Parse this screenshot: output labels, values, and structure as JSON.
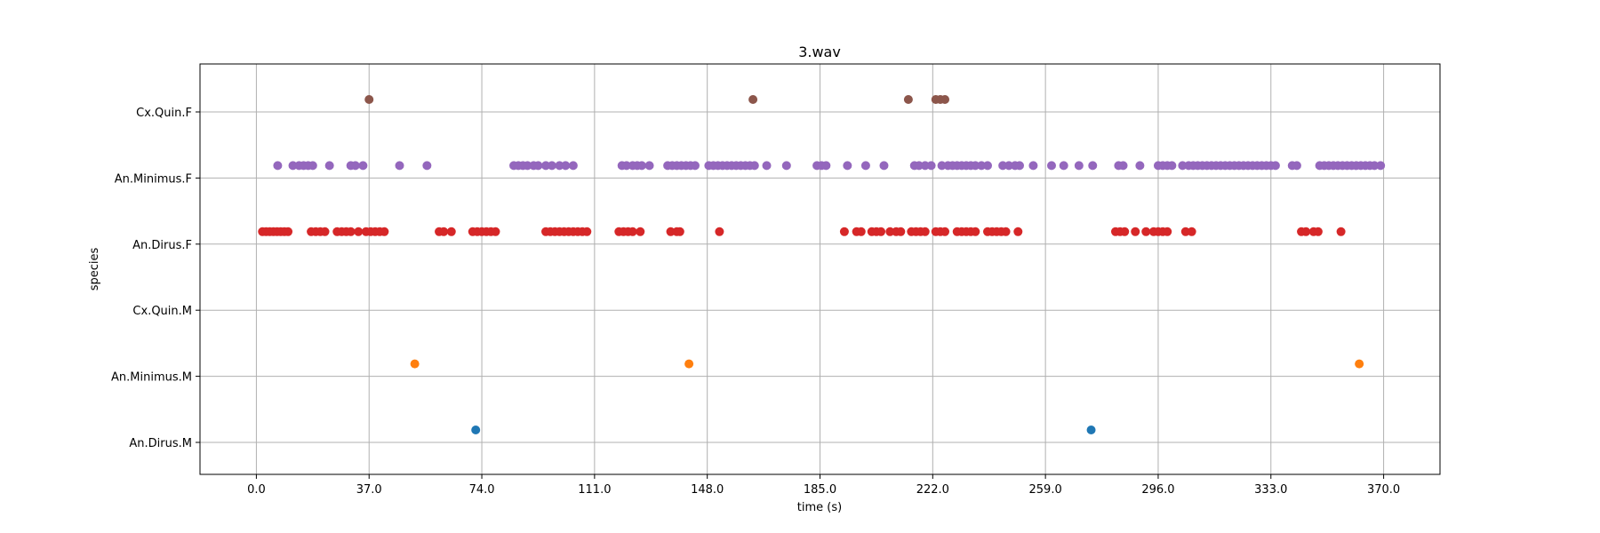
{
  "chart_data": {
    "type": "scatter",
    "title": "3.wav",
    "xlabel": "time (s)",
    "ylabel": "species",
    "xlim": [
      -18.5,
      388.5
    ],
    "x_ticks": [
      0.0,
      37.0,
      74.0,
      111.0,
      148.0,
      185.0,
      222.0,
      259.0,
      296.0,
      333.0,
      370.0
    ],
    "x_tick_labels": [
      "0.0",
      "37.0",
      "74.0",
      "111.0",
      "148.0",
      "185.0",
      "222.0",
      "259.0",
      "296.0",
      "333.0",
      "370.0"
    ],
    "categories": [
      "An.Dirus.M",
      "An.Minimus.M",
      "Cx.Quin.M",
      "An.Dirus.F",
      "An.Minimus.F",
      "Cx.Quin.F"
    ],
    "grid": true,
    "series": [
      {
        "category": "An.Dirus.M",
        "color": "#1f77b4",
        "x": [
          72.0,
          274.0
        ]
      },
      {
        "category": "An.Minimus.M",
        "color": "#ff7f0e",
        "x": [
          52.0,
          142.0,
          362.0
        ]
      },
      {
        "category": "Cx.Quin.M",
        "color": "#2ca02c",
        "x": []
      },
      {
        "category": "An.Dirus.F",
        "color": "#d62728",
        "x": [
          2.0,
          3.2,
          4.4,
          5.6,
          6.8,
          8.0,
          9.2,
          10.4,
          18.0,
          19.5,
          21.0,
          22.5,
          26.5,
          28.0,
          29.5,
          31.0,
          33.5,
          36.0,
          37.5,
          39.0,
          40.5,
          42.0,
          60.0,
          61.5,
          64.0,
          71.0,
          72.5,
          74.0,
          75.5,
          77.0,
          78.5,
          95.0,
          96.5,
          98.0,
          99.5,
          101.0,
          102.5,
          104.0,
          105.5,
          107.0,
          108.5,
          119.0,
          120.5,
          122.0,
          123.5,
          126.0,
          136.0,
          138.0,
          139.0,
          152.0,
          193.0,
          197.0,
          198.5,
          202.0,
          203.5,
          205.0,
          208.0,
          210.0,
          211.5,
          215.0,
          216.5,
          218.0,
          219.5,
          223.0,
          224.5,
          226.0,
          230.0,
          231.5,
          233.0,
          234.5,
          236.0,
          240.0,
          241.5,
          243.0,
          244.5,
          246.0,
          250.0,
          282.0,
          283.5,
          285.0,
          288.5,
          292.0,
          294.5,
          296.0,
          297.5,
          299.0,
          305.0,
          307.0,
          343.0,
          344.5,
          347.0,
          348.5,
          356.0
        ]
      },
      {
        "category": "An.Minimus.F",
        "color": "#9467bd",
        "x": [
          7.0,
          12.0,
          14.0,
          15.5,
          17.0,
          18.5,
          24.0,
          31.0,
          32.5,
          35.0,
          47.0,
          56.0,
          84.5,
          86.0,
          87.5,
          89.0,
          91.0,
          92.5,
          95.0,
          97.0,
          99.5,
          101.5,
          104.0,
          120.0,
          121.5,
          123.5,
          125.0,
          126.5,
          129.0,
          135.0,
          136.5,
          138.0,
          139.5,
          141.0,
          142.5,
          144.0,
          148.5,
          150.0,
          151.5,
          153.0,
          154.5,
          156.0,
          157.5,
          159.0,
          160.5,
          162.0,
          163.5,
          167.5,
          174.0,
          184.0,
          185.5,
          187.0,
          194.0,
          200.0,
          206.0,
          216.0,
          217.5,
          219.5,
          221.5,
          225.0,
          227.0,
          228.5,
          230.0,
          231.5,
          233.0,
          234.5,
          236.0,
          238.0,
          240.0,
          245.0,
          247.0,
          249.0,
          250.5,
          255.0,
          261.0,
          265.0,
          270.0,
          274.5,
          283.0,
          284.5,
          290.0,
          296.0,
          297.5,
          299.0,
          300.5,
          304.0,
          306.0,
          307.5,
          309.0,
          310.5,
          312.0,
          313.5,
          315.0,
          316.5,
          318.0,
          319.5,
          321.0,
          322.5,
          324.0,
          325.5,
          327.0,
          328.5,
          330.0,
          331.5,
          333.0,
          334.5,
          340.0,
          341.5,
          349.0,
          350.5,
          352.0,
          353.5,
          355.0,
          356.5,
          358.0,
          359.5,
          361.0,
          362.5,
          364.0,
          365.5,
          367.0,
          369.0
        ]
      },
      {
        "category": "Cx.Quin.F",
        "color": "#8c564b",
        "x": [
          37.0,
          163.0,
          214.0,
          223.0,
          224.5,
          226.0
        ]
      }
    ]
  }
}
